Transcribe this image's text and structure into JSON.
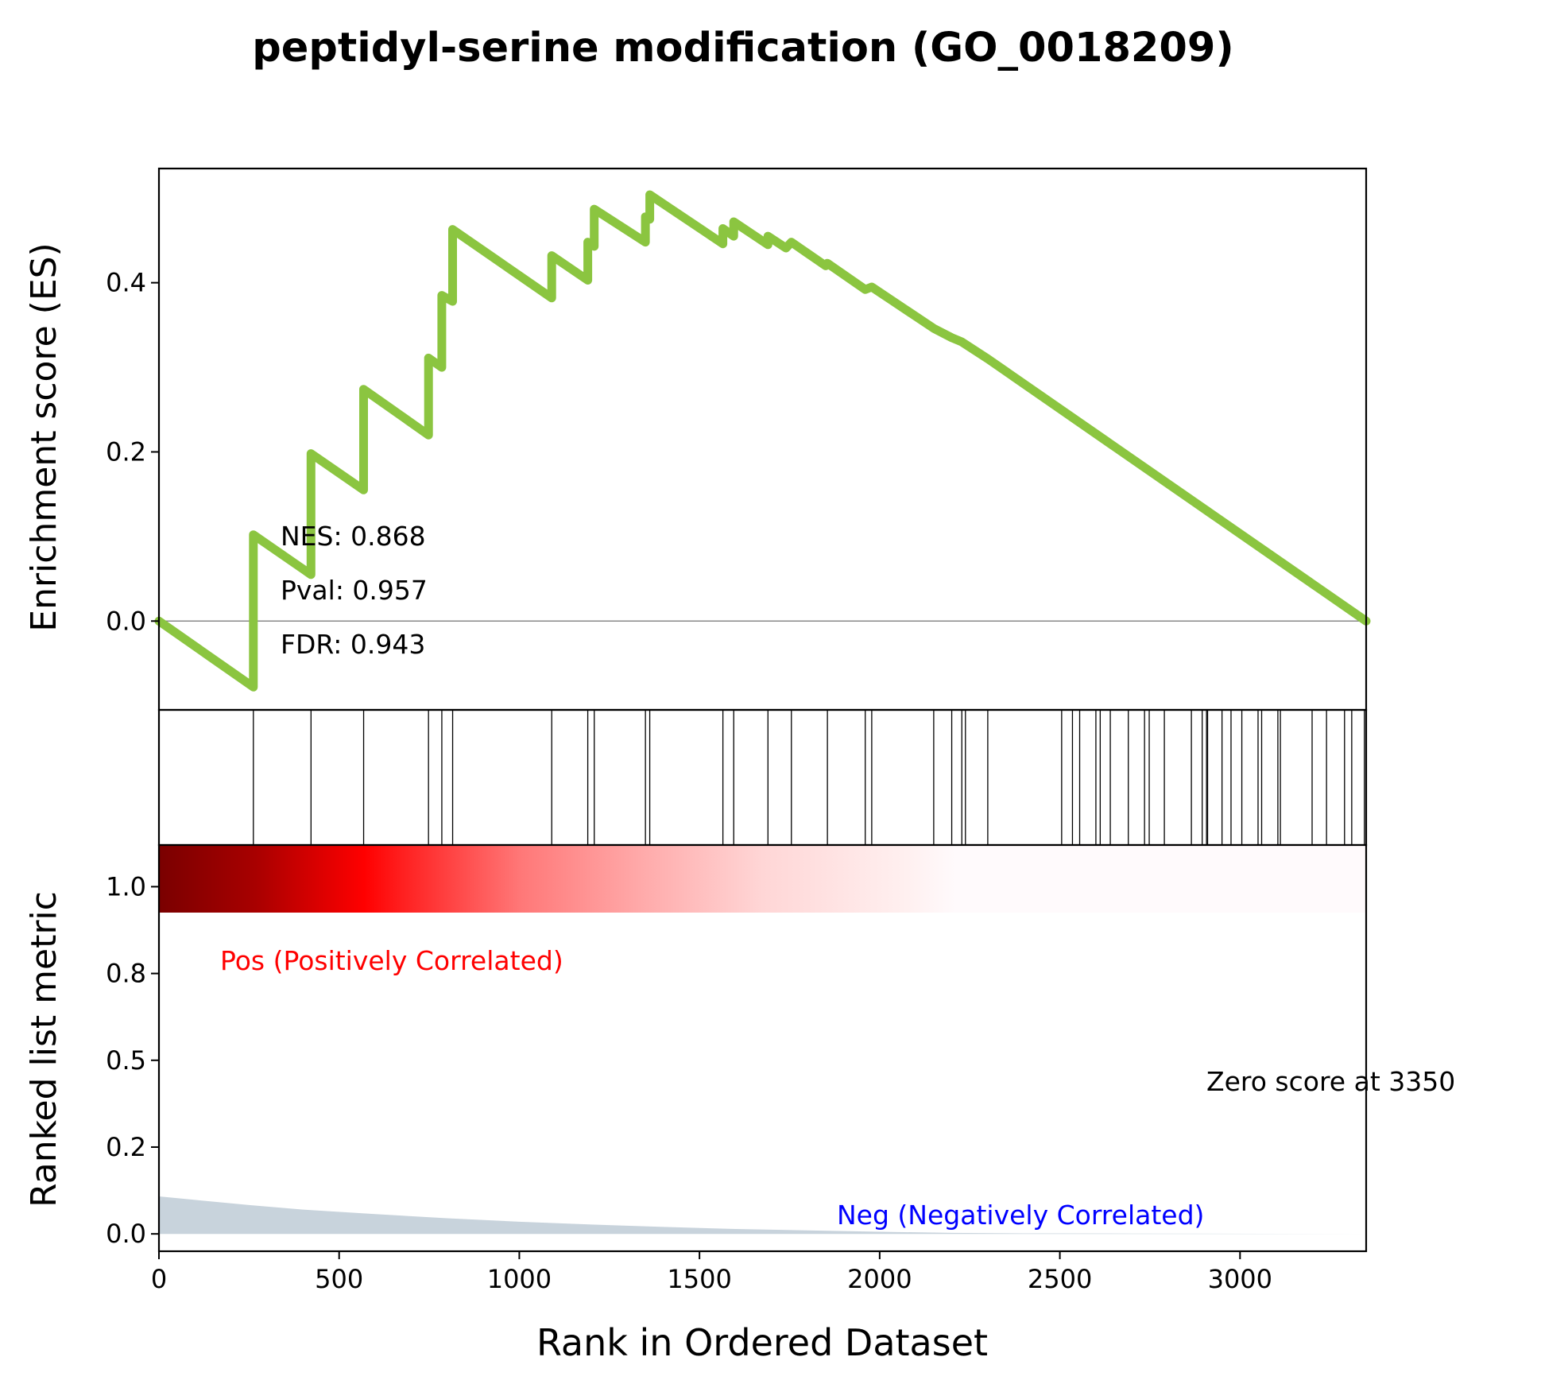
{
  "chart_data": {
    "type": "line",
    "title": "peptidyl-serine modification (GO_0018209)",
    "xlabel": "Rank in Ordered Dataset",
    "es_panel": {
      "ylabel": "Enrichment score (ES)",
      "xlim": [
        0,
        3350
      ],
      "ylim": [
        -0.105,
        0.535
      ],
      "yticks": [
        0.0,
        0.2,
        0.4
      ],
      "ytick_labels": [
        "0.0",
        "0.2",
        "0.4"
      ],
      "line_color": "#8bc540",
      "zero_line_color": "#888888",
      "annotations": {
        "nes": "NES: 0.868",
        "pval": "Pval: 0.957",
        "fdr": "FDR: 0.943"
      },
      "es_path": [
        [
          0,
          0.0
        ],
        [
          262,
          -0.078
        ],
        [
          262,
          0.102
        ],
        [
          422,
          0.055
        ],
        [
          422,
          0.198
        ],
        [
          568,
          0.155
        ],
        [
          568,
          0.274
        ],
        [
          748,
          0.22
        ],
        [
          748,
          0.311
        ],
        [
          785,
          0.3
        ],
        [
          785,
          0.385
        ],
        [
          815,
          0.378
        ],
        [
          815,
          0.463
        ],
        [
          1090,
          0.382
        ],
        [
          1090,
          0.432
        ],
        [
          1190,
          0.403
        ],
        [
          1190,
          0.448
        ],
        [
          1208,
          0.443
        ],
        [
          1208,
          0.487
        ],
        [
          1350,
          0.448
        ],
        [
          1350,
          0.478
        ],
        [
          1362,
          0.475
        ],
        [
          1362,
          0.504
        ],
        [
          1565,
          0.446
        ],
        [
          1565,
          0.464
        ],
        [
          1595,
          0.455
        ],
        [
          1595,
          0.472
        ],
        [
          1690,
          0.445
        ],
        [
          1690,
          0.455
        ],
        [
          1740,
          0.441
        ],
        [
          1755,
          0.448
        ],
        [
          1850,
          0.42
        ],
        [
          1855,
          0.423
        ],
        [
          1960,
          0.392
        ],
        [
          1978,
          0.395
        ],
        [
          2150,
          0.346
        ],
        [
          2200,
          0.335
        ],
        [
          2228,
          0.33
        ],
        [
          2300,
          0.31
        ],
        [
          3350,
          0.0
        ]
      ]
    },
    "hit_panel": {
      "hit_positions": [
        262,
        422,
        568,
        748,
        785,
        815,
        1090,
        1190,
        1208,
        1350,
        1362,
        1565,
        1595,
        1690,
        1755,
        1855,
        1960,
        1978,
        2150,
        2200,
        2228,
        2238,
        2300,
        2505,
        2535,
        2555,
        2600,
        2612,
        2640,
        2690,
        2735,
        2748,
        2790,
        2865,
        2895,
        2907,
        2910,
        2950,
        2975,
        3005,
        3050,
        3060,
        3105,
        3112,
        3200,
        3240,
        3290,
        3310,
        3345
      ]
    },
    "metric_panel": {
      "ylabel": "Ranked list metric",
      "xlim": [
        0,
        3350
      ],
      "ylim": [
        -0.05,
        1.12
      ],
      "yticks": [
        0.0,
        0.25,
        0.5,
        0.75,
        1.0
      ],
      "ytick_labels": [
        "0.0",
        "0.2",
        "0.5",
        "0.8",
        "1.0"
      ],
      "xticks": [
        0,
        500,
        1000,
        1500,
        2000,
        2500,
        3000
      ],
      "xtick_labels": [
        "0",
        "500",
        "1000",
        "1500",
        "2000",
        "2500",
        "3000"
      ],
      "fill_color": "#c8d3dc",
      "metric_curve": [
        [
          0,
          0.108
        ],
        [
          100,
          0.098
        ],
        [
          250,
          0.083
        ],
        [
          400,
          0.07
        ],
        [
          600,
          0.057
        ],
        [
          800,
          0.045
        ],
        [
          1000,
          0.035
        ],
        [
          1200,
          0.027
        ],
        [
          1400,
          0.02
        ],
        [
          1600,
          0.014
        ],
        [
          1800,
          0.01
        ],
        [
          2000,
          0.006
        ],
        [
          2200,
          0.003
        ],
        [
          2400,
          0.0015
        ],
        [
          2700,
          0.001
        ],
        [
          3350,
          0.0
        ]
      ],
      "pos_label": "Pos (Positively Correlated)",
      "pos_color": "#ff0000",
      "neg_label": "Neg (Negatively Correlated)",
      "neg_color": "#0000ff",
      "zero_score_label": "Zero score at 3350"
    }
  }
}
